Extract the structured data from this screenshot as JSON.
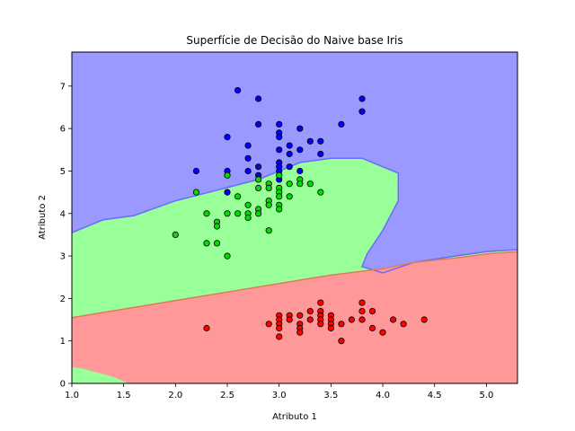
{
  "chart_data": {
    "type": "scatter",
    "title": "Superfície de Decisão do Naive base Iris",
    "xlabel": "Atributo 1",
    "ylabel": "Atributo 2",
    "xlim": [
      1.0,
      5.3
    ],
    "ylim": [
      0,
      7.8
    ],
    "xticks": [
      "1.0",
      "1.5",
      "2.0",
      "2.5",
      "3.0",
      "3.5",
      "4.0",
      "4.5",
      "5.0"
    ],
    "yticks": [
      "0",
      "1",
      "2",
      "3",
      "4",
      "5",
      "6",
      "7"
    ],
    "grid": false,
    "regions": [
      {
        "class": "blue",
        "color": "#9999ff"
      },
      {
        "class": "green",
        "color": "#99ff99"
      },
      {
        "class": "red",
        "color": "#ff9999"
      }
    ],
    "boundaries": {
      "blue_green": [
        [
          1.0,
          3.55
        ],
        [
          1.3,
          3.85
        ],
        [
          1.6,
          3.95
        ],
        [
          2.0,
          4.3
        ],
        [
          2.4,
          4.55
        ],
        [
          2.8,
          4.8
        ],
        [
          3.2,
          5.2
        ],
        [
          3.5,
          5.3
        ],
        [
          3.8,
          5.3
        ],
        [
          4.0,
          5.1
        ],
        [
          4.15,
          4.95
        ],
        [
          4.15,
          4.3
        ],
        [
          4.0,
          3.6
        ],
        [
          3.85,
          3.05
        ],
        [
          3.8,
          2.75
        ],
        [
          4.0,
          2.6
        ],
        [
          4.3,
          2.85
        ],
        [
          4.7,
          3.0
        ],
        [
          5.0,
          3.1
        ],
        [
          5.3,
          3.15
        ]
      ],
      "green_red": [
        [
          1.0,
          1.55
        ],
        [
          1.5,
          1.75
        ],
        [
          2.0,
          1.95
        ],
        [
          2.5,
          2.15
        ],
        [
          3.0,
          2.35
        ],
        [
          3.5,
          2.55
        ],
        [
          4.0,
          2.7
        ],
        [
          4.3,
          2.85
        ],
        [
          4.7,
          2.95
        ],
        [
          5.0,
          3.05
        ],
        [
          5.3,
          3.1
        ]
      ],
      "green_bottom": [
        [
          1.0,
          0.38
        ],
        [
          1.1,
          0.35
        ],
        [
          1.4,
          0.15
        ],
        [
          1.55,
          0.0
        ]
      ]
    },
    "series": [
      {
        "color": "#0000ff",
        "points": [
          [
            2.6,
            6.9
          ],
          [
            2.8,
            6.7
          ],
          [
            3.8,
            6.7
          ],
          [
            3.8,
            6.4
          ],
          [
            2.8,
            6.1
          ],
          [
            3.0,
            6.1
          ],
          [
            3.6,
            6.1
          ],
          [
            3.0,
            5.9
          ],
          [
            3.2,
            6.0
          ],
          [
            2.5,
            5.8
          ],
          [
            3.0,
            5.8
          ],
          [
            2.7,
            5.6
          ],
          [
            3.1,
            5.6
          ],
          [
            3.3,
            5.7
          ],
          [
            3.4,
            5.7
          ],
          [
            3.2,
            5.5
          ],
          [
            3.0,
            5.5
          ],
          [
            3.1,
            5.4
          ],
          [
            3.4,
            5.4
          ],
          [
            2.7,
            5.3
          ],
          [
            3.0,
            5.2
          ],
          [
            2.8,
            5.1
          ],
          [
            3.0,
            5.1
          ],
          [
            3.1,
            5.1
          ],
          [
            2.2,
            5.0
          ],
          [
            2.5,
            5.0
          ],
          [
            2.7,
            5.0
          ],
          [
            3.0,
            5.0
          ],
          [
            3.2,
            5.0
          ],
          [
            2.8,
            4.9
          ],
          [
            3.0,
            4.8
          ],
          [
            2.5,
            4.5
          ]
        ]
      },
      {
        "color": "#00dd00",
        "points": [
          [
            2.5,
            4.9
          ],
          [
            2.8,
            4.8
          ],
          [
            3.0,
            4.9
          ],
          [
            3.2,
            4.8
          ],
          [
            2.9,
            4.7
          ],
          [
            3.1,
            4.7
          ],
          [
            3.2,
            4.7
          ],
          [
            3.3,
            4.7
          ],
          [
            2.8,
            4.6
          ],
          [
            2.9,
            4.6
          ],
          [
            3.0,
            4.6
          ],
          [
            2.2,
            4.5
          ],
          [
            3.0,
            4.5
          ],
          [
            3.4,
            4.5
          ],
          [
            2.6,
            4.4
          ],
          [
            3.0,
            4.4
          ],
          [
            3.1,
            4.4
          ],
          [
            2.9,
            4.3
          ],
          [
            2.7,
            4.2
          ],
          [
            2.9,
            4.2
          ],
          [
            3.0,
            4.2
          ],
          [
            2.8,
            4.1
          ],
          [
            3.0,
            4.1
          ],
          [
            2.5,
            4.0
          ],
          [
            2.6,
            4.0
          ],
          [
            2.7,
            4.0
          ],
          [
            2.8,
            4.0
          ],
          [
            2.3,
            4.0
          ],
          [
            2.7,
            3.9
          ],
          [
            2.4,
            3.8
          ],
          [
            2.4,
            3.7
          ],
          [
            2.9,
            3.6
          ],
          [
            2.0,
            3.5
          ],
          [
            2.3,
            3.3
          ],
          [
            2.4,
            3.3
          ],
          [
            2.5,
            3.0
          ]
        ]
      },
      {
        "color": "#ff0000",
        "points": [
          [
            3.4,
            1.9
          ],
          [
            3.8,
            1.9
          ],
          [
            3.3,
            1.7
          ],
          [
            3.4,
            1.7
          ],
          [
            3.8,
            1.7
          ],
          [
            3.9,
            1.7
          ],
          [
            3.0,
            1.6
          ],
          [
            3.1,
            1.6
          ],
          [
            3.2,
            1.6
          ],
          [
            3.4,
            1.6
          ],
          [
            3.5,
            1.6
          ],
          [
            3.0,
            1.5
          ],
          [
            3.1,
            1.5
          ],
          [
            3.3,
            1.5
          ],
          [
            3.4,
            1.5
          ],
          [
            3.5,
            1.5
          ],
          [
            3.7,
            1.5
          ],
          [
            3.8,
            1.5
          ],
          [
            4.1,
            1.5
          ],
          [
            4.4,
            1.5
          ],
          [
            2.9,
            1.4
          ],
          [
            3.0,
            1.4
          ],
          [
            3.2,
            1.4
          ],
          [
            3.4,
            1.4
          ],
          [
            3.5,
            1.4
          ],
          [
            3.6,
            1.4
          ],
          [
            4.2,
            1.4
          ],
          [
            2.3,
            1.3
          ],
          [
            3.0,
            1.3
          ],
          [
            3.2,
            1.3
          ],
          [
            3.5,
            1.3
          ],
          [
            3.9,
            1.3
          ],
          [
            4.0,
            1.2
          ],
          [
            3.2,
            1.2
          ],
          [
            3.0,
            1.1
          ],
          [
            3.6,
            1.0
          ]
        ]
      }
    ]
  }
}
